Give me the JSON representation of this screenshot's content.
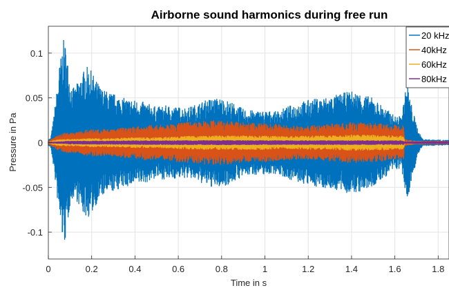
{
  "chart_data": {
    "type": "area",
    "title": "Airborne sound harmonics during free run",
    "xlabel": "Time in s",
    "ylabel": "Pressure in Pa",
    "xlim": [
      0,
      1.85
    ],
    "ylim": [
      -0.13,
      0.13
    ],
    "x_ticks": [
      0,
      0.2,
      0.4,
      0.6,
      0.8,
      1,
      1.2,
      1.4,
      1.6,
      1.8
    ],
    "x_tick_labels": [
      "0",
      "0.2",
      "0.4",
      "0.6",
      "0.8",
      "1",
      "1.2",
      "1.4",
      "1.6",
      "1.8"
    ],
    "y_ticks": [
      -0.1,
      -0.05,
      0,
      0.05,
      0.1
    ],
    "y_tick_labels": [
      "-0.1",
      "-0.05",
      "0",
      "0.05",
      "0.1"
    ],
    "grid": true,
    "legend_position": "top-right",
    "series": [
      {
        "name": "20 kHz",
        "color": "#0072BD",
        "envelope": [
          [
            0,
            0.004
          ],
          [
            0.01,
            0.005
          ],
          [
            0.02,
            0.02
          ],
          [
            0.03,
            0.04
          ],
          [
            0.04,
            0.06
          ],
          [
            0.05,
            0.085
          ],
          [
            0.06,
            0.1
          ],
          [
            0.07,
            0.115
          ],
          [
            0.08,
            0.11
          ],
          [
            0.09,
            0.09
          ],
          [
            0.1,
            0.07
          ],
          [
            0.12,
            0.06
          ],
          [
            0.14,
            0.07
          ],
          [
            0.16,
            0.08
          ],
          [
            0.18,
            0.085
          ],
          [
            0.2,
            0.08
          ],
          [
            0.22,
            0.07
          ],
          [
            0.25,
            0.06
          ],
          [
            0.3,
            0.055
          ],
          [
            0.35,
            0.05
          ],
          [
            0.4,
            0.048
          ],
          [
            0.45,
            0.045
          ],
          [
            0.5,
            0.04
          ],
          [
            0.55,
            0.042
          ],
          [
            0.6,
            0.04
          ],
          [
            0.65,
            0.04
          ],
          [
            0.7,
            0.045
          ],
          [
            0.75,
            0.05
          ],
          [
            0.8,
            0.05
          ],
          [
            0.85,
            0.045
          ],
          [
            0.9,
            0.038
          ],
          [
            0.95,
            0.036
          ],
          [
            1.0,
            0.036
          ],
          [
            1.05,
            0.035
          ],
          [
            1.1,
            0.04
          ],
          [
            1.15,
            0.045
          ],
          [
            1.2,
            0.048
          ],
          [
            1.25,
            0.05
          ],
          [
            1.3,
            0.052
          ],
          [
            1.35,
            0.055
          ],
          [
            1.4,
            0.058
          ],
          [
            1.45,
            0.055
          ],
          [
            1.5,
            0.05
          ],
          [
            1.55,
            0.04
          ],
          [
            1.6,
            0.03
          ],
          [
            1.63,
            0.03
          ],
          [
            1.65,
            0.06
          ],
          [
            1.66,
            0.065
          ],
          [
            1.67,
            0.05
          ],
          [
            1.69,
            0.03
          ],
          [
            1.71,
            0.012
          ],
          [
            1.73,
            0.004
          ],
          [
            1.85,
            0.003
          ]
        ]
      },
      {
        "name": "40kHz",
        "color": "#D95319",
        "envelope": [
          [
            0,
            0.002
          ],
          [
            0.02,
            0.005
          ],
          [
            0.04,
            0.008
          ],
          [
            0.06,
            0.01
          ],
          [
            0.08,
            0.012
          ],
          [
            0.1,
            0.011
          ],
          [
            0.15,
            0.013
          ],
          [
            0.2,
            0.016
          ],
          [
            0.25,
            0.015
          ],
          [
            0.3,
            0.016
          ],
          [
            0.35,
            0.017
          ],
          [
            0.4,
            0.018
          ],
          [
            0.45,
            0.02
          ],
          [
            0.5,
            0.02
          ],
          [
            0.55,
            0.021
          ],
          [
            0.6,
            0.022
          ],
          [
            0.65,
            0.023
          ],
          [
            0.7,
            0.024
          ],
          [
            0.75,
            0.025
          ],
          [
            0.8,
            0.025
          ],
          [
            0.85,
            0.024
          ],
          [
            0.9,
            0.023
          ],
          [
            0.95,
            0.022
          ],
          [
            1.0,
            0.022
          ],
          [
            1.05,
            0.021
          ],
          [
            1.1,
            0.02
          ],
          [
            1.15,
            0.019
          ],
          [
            1.2,
            0.019
          ],
          [
            1.25,
            0.02
          ],
          [
            1.3,
            0.021
          ],
          [
            1.35,
            0.022
          ],
          [
            1.4,
            0.023
          ],
          [
            1.45,
            0.023
          ],
          [
            1.5,
            0.022
          ],
          [
            1.55,
            0.021
          ],
          [
            1.6,
            0.02
          ],
          [
            1.64,
            0.02
          ],
          [
            1.645,
            0.004
          ],
          [
            1.7,
            0.002
          ],
          [
            1.85,
            0.002
          ]
        ]
      },
      {
        "name": "60kHz",
        "color": "#EDB120",
        "envelope": [
          [
            0,
            0.001
          ],
          [
            0.03,
            0.003
          ],
          [
            0.06,
            0.004
          ],
          [
            0.1,
            0.004
          ],
          [
            0.2,
            0.005
          ],
          [
            0.3,
            0.005
          ],
          [
            0.4,
            0.006
          ],
          [
            0.5,
            0.006
          ],
          [
            0.6,
            0.007
          ],
          [
            0.7,
            0.008
          ],
          [
            0.8,
            0.008
          ],
          [
            0.9,
            0.008
          ],
          [
            1.0,
            0.008
          ],
          [
            1.1,
            0.007
          ],
          [
            1.2,
            0.008
          ],
          [
            1.3,
            0.008
          ],
          [
            1.4,
            0.009
          ],
          [
            1.5,
            0.009
          ],
          [
            1.6,
            0.008
          ],
          [
            1.64,
            0.008
          ],
          [
            1.645,
            0.002
          ],
          [
            1.85,
            0.001
          ]
        ]
      },
      {
        "name": "80kHz",
        "color": "#7E2F8E",
        "envelope": [
          [
            0,
            0.0008
          ],
          [
            0.1,
            0.002
          ],
          [
            0.4,
            0.0025
          ],
          [
            0.8,
            0.0028
          ],
          [
            1.2,
            0.0026
          ],
          [
            1.6,
            0.0026
          ],
          [
            1.64,
            0.0026
          ],
          [
            1.645,
            0.0015
          ],
          [
            1.85,
            0.0015
          ]
        ]
      }
    ]
  }
}
